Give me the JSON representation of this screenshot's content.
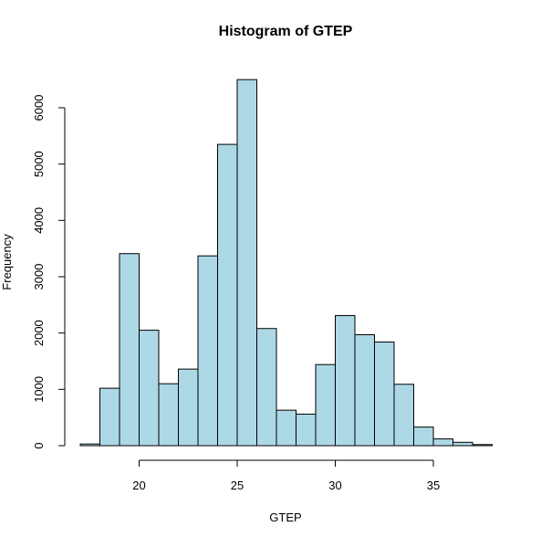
{
  "chart_data": {
    "type": "bar",
    "title": "Histogram of GTEP",
    "xlabel": "GTEP",
    "ylabel": "Frequency",
    "bar_color": "#add8e6",
    "bin_edges": [
      17,
      18,
      19,
      20,
      21,
      22,
      23,
      24,
      25,
      26,
      27,
      28,
      29,
      30,
      31,
      32,
      33,
      34,
      35,
      36,
      37,
      38
    ],
    "values": [
      30,
      1020,
      3410,
      2050,
      1100,
      1360,
      3370,
      5350,
      6500,
      2080,
      630,
      560,
      1440,
      2310,
      1970,
      1840,
      1090,
      330,
      120,
      60,
      20
    ],
    "xticks": [
      20,
      25,
      30,
      35
    ],
    "yticks": [
      0,
      1000,
      2000,
      3000,
      4000,
      5000,
      6000
    ],
    "xlim": [
      17,
      38
    ],
    "ylim": [
      0,
      6500
    ]
  }
}
